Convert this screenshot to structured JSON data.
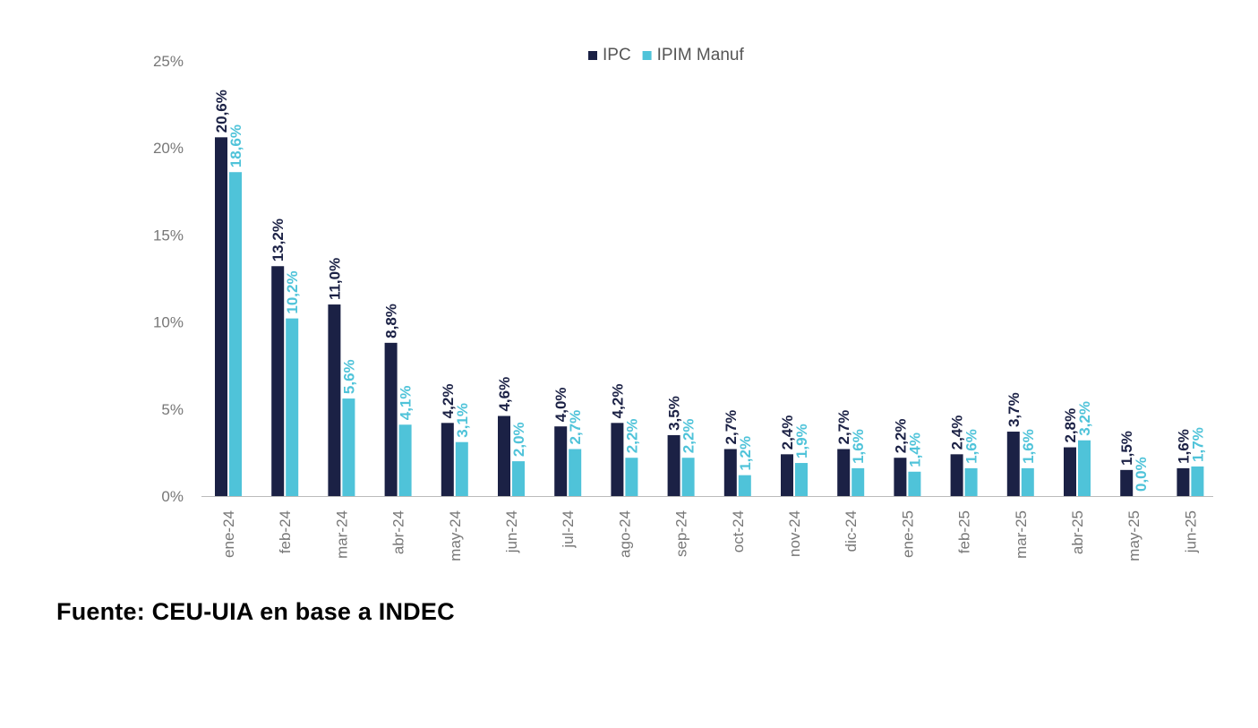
{
  "source_note": "Fuente: CEU-UIA en base a INDEC",
  "colors": {
    "ipc": "#1b2145",
    "ipim": "#4fc3d9",
    "axis_text": "#777777",
    "axis_line": "#bbbbbb"
  },
  "chart_data": {
    "type": "bar",
    "title": "",
    "xlabel": "",
    "ylabel": "",
    "ylim": [
      0,
      25
    ],
    "yticks": [
      0,
      5,
      10,
      15,
      20,
      25
    ],
    "ytick_labels": [
      "0%",
      "5%",
      "10%",
      "15%",
      "20%",
      "25%"
    ],
    "legend_position": "top-center",
    "grid": false,
    "categories": [
      "ene-24",
      "feb-24",
      "mar-24",
      "abr-24",
      "may-24",
      "jun-24",
      "jul-24",
      "ago-24",
      "sep-24",
      "oct-24",
      "nov-24",
      "dic-24",
      "ene-25",
      "feb-25",
      "mar-25",
      "abr-25",
      "may-25",
      "jun-25"
    ],
    "series": [
      {
        "name": "IPC",
        "color": "#1b2145",
        "values": [
          20.6,
          13.2,
          11.0,
          8.8,
          4.2,
          4.6,
          4.0,
          4.2,
          3.5,
          2.7,
          2.4,
          2.7,
          2.2,
          2.4,
          3.7,
          2.8,
          1.5,
          1.6
        ],
        "labels": [
          "20,6%",
          "13,2%",
          "11,0%",
          "8,8%",
          "4,2%",
          "4,6%",
          "4,0%",
          "4,2%",
          "3,5%",
          "2,7%",
          "2,4%",
          "2,7%",
          "2,2%",
          "2,4%",
          "3,7%",
          "2,8%",
          "1,5%",
          "1,6%"
        ]
      },
      {
        "name": "IPIM Manuf",
        "color": "#4fc3d9",
        "values": [
          18.6,
          10.2,
          5.6,
          4.1,
          3.1,
          2.0,
          2.7,
          2.2,
          2.2,
          1.2,
          1.9,
          1.6,
          1.4,
          1.6,
          1.6,
          3.2,
          0.0,
          1.7
        ],
        "labels": [
          "18,6%",
          "10,2%",
          "5,6%",
          "4,1%",
          "3,1%",
          "2,0%",
          "2,7%",
          "2,2%",
          "2,2%",
          "1,2%",
          "1,9%",
          "1,6%",
          "1,4%",
          "1,6%",
          "1,6%",
          "3,2%",
          "0,0%",
          "1,7%"
        ]
      }
    ]
  }
}
